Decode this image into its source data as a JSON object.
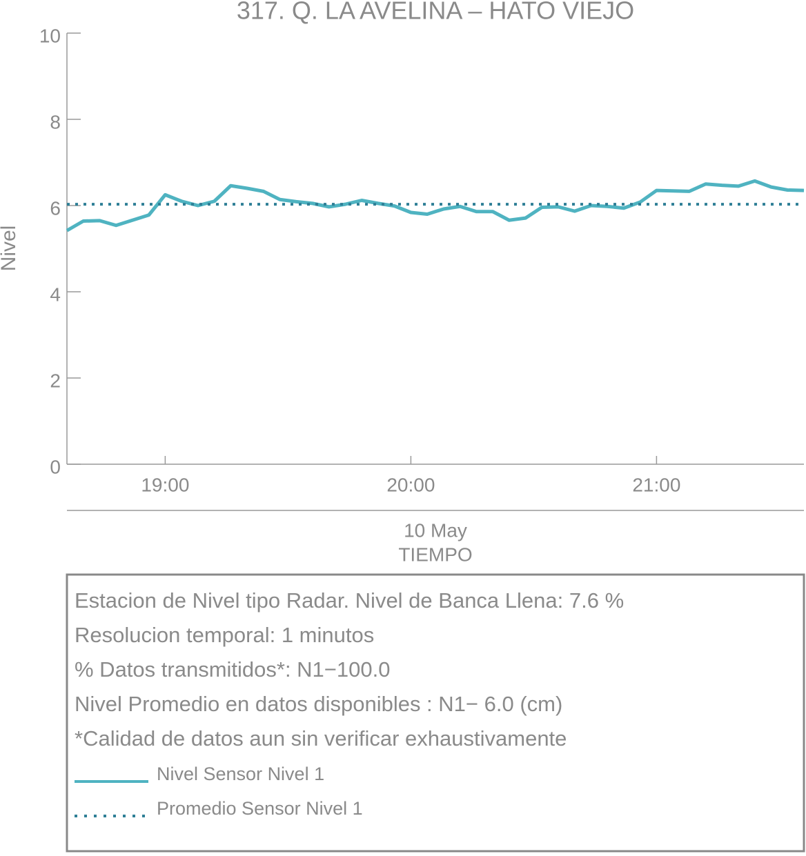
{
  "chart_data": {
    "type": "line",
    "title": "317. Q. LA AVELINA – HATO VIEJO",
    "ylabel": "Nivel",
    "xlabel": "TIEMPO",
    "date_label": "10 May",
    "x": [
      "18:36",
      "18:40",
      "18:44",
      "18:48",
      "18:52",
      "18:56",
      "19:00",
      "19:04",
      "19:08",
      "19:12",
      "19:16",
      "19:20",
      "19:24",
      "19:28",
      "19:32",
      "19:36",
      "19:40",
      "19:44",
      "19:48",
      "19:52",
      "19:56",
      "20:00",
      "20:04",
      "20:08",
      "20:12",
      "20:16",
      "20:20",
      "20:24",
      "20:28",
      "20:32",
      "20:36",
      "20:40",
      "20:44",
      "20:48",
      "20:52",
      "20:56",
      "21:00",
      "21:04",
      "21:08",
      "21:12",
      "21:16",
      "21:20",
      "21:24",
      "21:28",
      "21:32",
      "21:36"
    ],
    "series": [
      {
        "name": "Nivel Sensor Nivel 1",
        "color": "#4fb3c1",
        "values": [
          5.42,
          5.64,
          5.65,
          5.54,
          5.66,
          5.78,
          6.25,
          6.1,
          6.0,
          6.1,
          6.46,
          6.4,
          6.33,
          6.14,
          6.09,
          6.05,
          5.97,
          6.03,
          6.12,
          6.05,
          5.99,
          5.84,
          5.8,
          5.92,
          5.98,
          5.86,
          5.86,
          5.66,
          5.71,
          5.96,
          5.97,
          5.87,
          6.0,
          5.98,
          5.94,
          6.08,
          6.35,
          6.34,
          6.33,
          6.5,
          6.47,
          6.45,
          6.57,
          6.43,
          6.36,
          6.35
        ]
      },
      {
        "name": "Promedio Sensor Nivel 1",
        "color": "#2e7f96",
        "style": "dotted",
        "value": 6.03
      }
    ],
    "xlim": [
      "18:36",
      "21:36"
    ],
    "xticks": [
      "19:00",
      "20:00",
      "21:00"
    ],
    "ylim": [
      0,
      10
    ],
    "yticks": [
      0,
      2,
      4,
      6,
      8,
      10
    ],
    "info_lines": [
      "Estacion de Nivel tipo Radar. Nivel de Banca Llena:  7.6 %",
      "Resolucion temporal: 1 minutos",
      "% Datos transmitidos*: N1−100.0",
      "Nivel Promedio en datos disponibles : N1−  6.0 (cm)",
      "*Calidad de datos aun sin verificar exhaustivamente"
    ]
  }
}
